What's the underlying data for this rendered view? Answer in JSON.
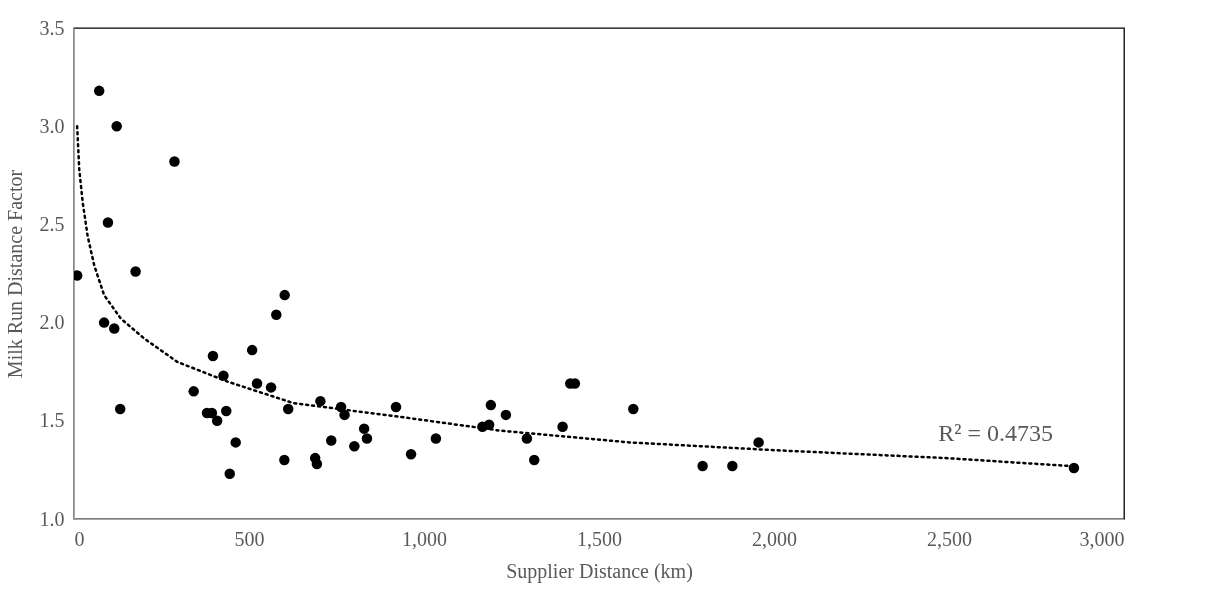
{
  "chart_data": {
    "type": "scatter",
    "xlabel": "Supplier Distance (km)",
    "ylabel": "Milk Run Distance Factor",
    "xlim": [
      0,
      3000
    ],
    "xticks": [
      0,
      {
        "value": 500,
        "label": "500"
      },
      {
        "value": 1000,
        "label": "1,000"
      },
      {
        "value": 1500,
        "label": "1,500"
      },
      {
        "value": 2000,
        "label": "2,000"
      },
      {
        "value": 2500,
        "label": "2,500"
      },
      {
        "value": 3000,
        "label": "3,000"
      }
    ],
    "ylim": [
      1.0,
      3.5
    ],
    "yticks": [
      {
        "value": 1.0,
        "label": "1.0"
      },
      1.5,
      {
        "value": 2.0,
        "label": "2.0"
      },
      2.5,
      {
        "value": 3.0,
        "label": "3.0"
      },
      3.5
    ],
    "grid": false,
    "legend": false,
    "annotations": [
      "R² = 0.4735"
    ],
    "series": [
      {
        "color": "#000000",
        "marker": "circle",
        "x": [
          72,
          122,
          287,
          97,
          9,
          176,
          602,
          578,
          86,
          115,
          509,
          397,
          427,
          523,
          563,
          342,
          132,
          380,
          394,
          435,
          409,
          612,
          462,
          601,
          445,
          704,
          763,
          773,
          920,
          829,
          837,
          735,
          801,
          689,
          694,
          963,
          1034,
          1191,
          1167,
          1186,
          1234,
          1294,
          1315,
          1396,
          1418,
          1431,
          1598,
          1796,
          1881,
          1956,
          2857
        ],
        "values": [
          3.18,
          3.0,
          2.82,
          2.51,
          2.24,
          2.26,
          2.14,
          2.04,
          2.0,
          1.97,
          1.86,
          1.83,
          1.73,
          1.69,
          1.67,
          1.65,
          1.56,
          1.54,
          1.54,
          1.55,
          1.5,
          1.56,
          1.39,
          1.3,
          1.23,
          1.6,
          1.57,
          1.53,
          1.57,
          1.46,
          1.41,
          1.4,
          1.37,
          1.31,
          1.28,
          1.33,
          1.41,
          1.58,
          1.47,
          1.48,
          1.53,
          1.41,
          1.3,
          1.47,
          1.69,
          1.69,
          1.56,
          1.27,
          1.27,
          1.39,
          1.26
        ]
      },
      {
        "type": "line",
        "color": "#000000",
        "marker": "none",
        "line_style": "dotted",
        "x": [
          9,
          15,
          25,
          39,
          58,
          86,
          134,
          200,
          295,
          438,
          627,
          932,
          1217,
          1587,
          2006,
          2492,
          2845
        ],
        "values": [
          3.0,
          2.78,
          2.61,
          2.44,
          2.29,
          2.14,
          2.02,
          1.92,
          1.8,
          1.7,
          1.59,
          1.52,
          1.45,
          1.39,
          1.35,
          1.31,
          1.27
        ]
      }
    ]
  }
}
